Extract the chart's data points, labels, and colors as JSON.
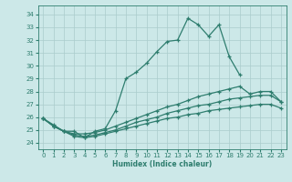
{
  "title": "",
  "xlabel": "Humidex (Indice chaleur)",
  "ylabel": "",
  "bg_color": "#cce8e8",
  "line_color": "#2e7d6e",
  "grid_color": "#aacccc",
  "xlim": [
    -0.5,
    23.5
  ],
  "ylim": [
    23.5,
    34.7
  ],
  "yticks": [
    24,
    25,
    26,
    27,
    28,
    29,
    30,
    31,
    32,
    33,
    34
  ],
  "xticks": [
    0,
    1,
    2,
    3,
    4,
    5,
    6,
    7,
    8,
    9,
    10,
    11,
    12,
    13,
    14,
    15,
    16,
    17,
    18,
    19,
    20,
    21,
    22,
    23
  ],
  "line1_x": [
    0,
    1,
    2,
    3,
    4,
    5,
    6,
    7,
    8,
    9,
    10,
    11,
    12,
    13,
    14,
    15,
    16,
    17,
    18,
    19
  ],
  "line1_y": [
    25.9,
    25.4,
    24.9,
    24.9,
    24.4,
    24.9,
    25.1,
    26.5,
    29.0,
    29.5,
    30.2,
    31.1,
    31.9,
    32.0,
    33.7,
    33.2,
    32.3,
    33.2,
    30.7,
    29.3
  ],
  "line2_x": [
    0,
    1,
    2,
    3,
    4,
    5,
    6,
    7,
    8,
    9,
    10,
    11,
    12,
    13,
    14,
    15,
    16,
    17,
    18,
    19,
    20,
    21,
    22,
    23
  ],
  "line2_y": [
    25.9,
    25.3,
    24.9,
    24.7,
    24.7,
    24.8,
    25.0,
    25.3,
    25.6,
    25.9,
    26.2,
    26.5,
    26.8,
    27.0,
    27.3,
    27.6,
    27.8,
    28.0,
    28.2,
    28.4,
    27.8,
    28.0,
    28.0,
    27.2
  ],
  "line3_x": [
    0,
    1,
    2,
    3,
    4,
    5,
    6,
    7,
    8,
    9,
    10,
    11,
    12,
    13,
    14,
    15,
    16,
    17,
    18,
    19,
    20,
    21,
    22,
    23
  ],
  "line3_y": [
    25.9,
    25.3,
    24.9,
    24.6,
    24.5,
    24.6,
    24.8,
    25.0,
    25.3,
    25.6,
    25.8,
    26.0,
    26.3,
    26.5,
    26.7,
    26.9,
    27.0,
    27.2,
    27.4,
    27.5,
    27.6,
    27.7,
    27.7,
    27.2
  ],
  "line4_x": [
    0,
    1,
    2,
    3,
    4,
    5,
    6,
    7,
    8,
    9,
    10,
    11,
    12,
    13,
    14,
    15,
    16,
    17,
    18,
    19,
    20,
    21,
    22,
    23
  ],
  "line4_y": [
    25.9,
    25.3,
    24.9,
    24.5,
    24.4,
    24.5,
    24.7,
    24.9,
    25.1,
    25.3,
    25.5,
    25.7,
    25.9,
    26.0,
    26.2,
    26.3,
    26.5,
    26.6,
    26.7,
    26.8,
    26.9,
    27.0,
    27.0,
    26.7
  ]
}
